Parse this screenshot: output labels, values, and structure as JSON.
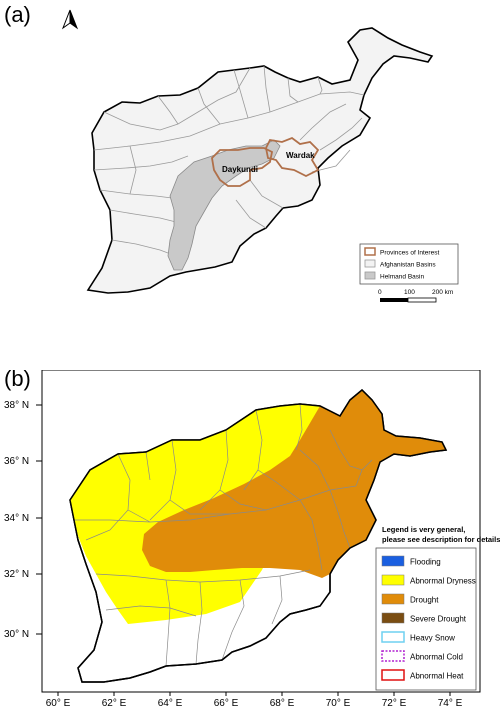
{
  "panel_a": {
    "label": "(a)",
    "north_icon": "north-arrow-icon",
    "province_labels": [
      "Daykundi",
      "Wardak"
    ],
    "legend": [
      {
        "label": "Provinces of Interest",
        "swatch": "#b0704a",
        "fill": "#ffffff"
      },
      {
        "label": "Afghanistan Basins",
        "swatch": "#9a9a9a",
        "fill": "#f3f3f3"
      },
      {
        "label": "Helmand Basin",
        "swatch": "#9a9a9a",
        "fill": "#c9c9c9"
      }
    ],
    "scale_bar": {
      "ticks": [
        "0",
        "100",
        "200 km"
      ]
    }
  },
  "panel_b": {
    "label": "(b)",
    "lat_labels": [
      "38° N",
      "36° N",
      "34° N",
      "32° N",
      "30° N"
    ],
    "lon_labels": [
      "60° E",
      "62° E",
      "64° E",
      "66° E",
      "68° E",
      "70° E",
      "72° E",
      "74° E"
    ],
    "legend_note": "Legend is very general, please see description for details.",
    "legend": [
      {
        "label": "Flooding",
        "color": "#1a5fe0",
        "style": "solid"
      },
      {
        "label": "Abnormal Dryness",
        "color": "#ffff00",
        "style": "solid"
      },
      {
        "label": "Drought",
        "color": "#e08c0a",
        "style": "solid"
      },
      {
        "label": "Severe Drought",
        "color": "#7a4d12",
        "style": "solid"
      },
      {
        "label": "Heavy Snow",
        "color": "#6fd0f0",
        "style": "outline"
      },
      {
        "label": "Abnormal Cold",
        "color": "#b020d0",
        "style": "dashed"
      },
      {
        "label": "Abnormal Heat",
        "color": "#e01010",
        "style": "outline"
      }
    ]
  },
  "colors": {
    "country_fill_a": "#f3f3f3",
    "helmand": "#c9c9c9",
    "province_outline": "#b0704a",
    "dryness": "#ffff00",
    "drought": "#e08c0a"
  }
}
